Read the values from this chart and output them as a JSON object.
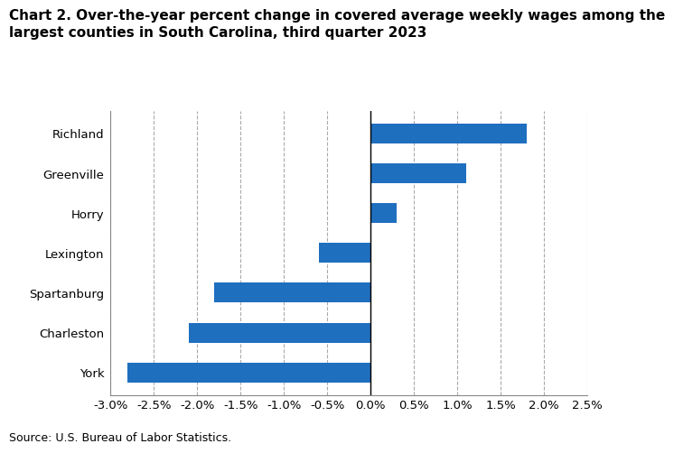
{
  "categories": [
    "Richland",
    "Greenville",
    "Horry",
    "Lexington",
    "Spartanburg",
    "Charleston",
    "York"
  ],
  "values": [
    1.8,
    1.1,
    0.3,
    -0.6,
    -1.8,
    -2.1,
    -2.8
  ],
  "bar_color": "#1F6FBF",
  "title_line1": "Chart 2. Over-the-year percent change in covered average weekly wages among the",
  "title_line2": "largest counties in South Carolina, third quarter 2023",
  "xlabel": "",
  "ylabel": "",
  "xlim": [
    -3.0,
    2.5
  ],
  "xticks": [
    -3.0,
    -2.5,
    -2.0,
    -1.5,
    -1.0,
    -0.5,
    0.0,
    0.5,
    1.0,
    1.5,
    2.0,
    2.5
  ],
  "source": "Source: U.S. Bureau of Labor Statistics.",
  "title_fontsize": 11.0,
  "tick_fontsize": 9.5,
  "source_fontsize": 9.0,
  "background_color": "#ffffff",
  "grid_color": "#aaaaaa",
  "zero_line_color": "#000000"
}
